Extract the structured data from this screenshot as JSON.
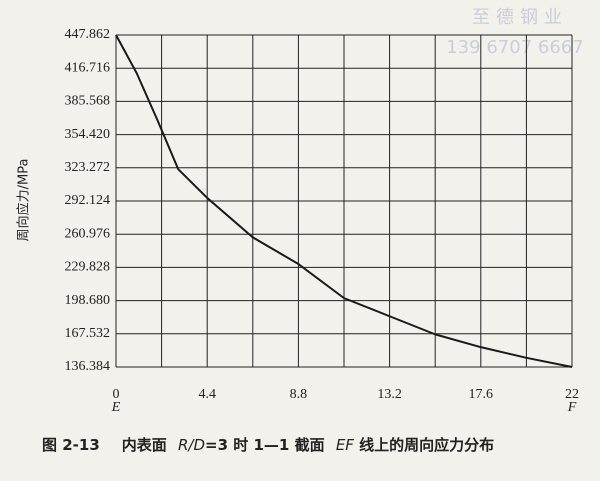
{
  "watermark": [
    "至德钢业",
    "139 6707 6667"
  ],
  "chart_data": {
    "type": "line",
    "y_label": "周向应力/MPa",
    "caption": [
      "图 2-13",
      "内表面 ",
      "R/D",
      "=3 时 1—1 截面 ",
      "EF",
      " 线上的周向应力分布"
    ],
    "x_end_labels": [
      "E",
      "F"
    ],
    "x": [
      0,
      1,
      2,
      3,
      4.4,
      6.6,
      8.8,
      11,
      13.2,
      15.4,
      17.6,
      19.8,
      22
    ],
    "values": [
      447.862,
      412,
      368,
      322,
      295,
      258,
      233,
      201,
      184,
      167,
      155,
      145,
      136.384
    ],
    "color": "#1a1a1a",
    "xlim": [
      0,
      22
    ],
    "xticks": [
      0,
      4.4,
      8.8,
      13.2,
      17.6,
      22
    ],
    "ylim": [
      136.384,
      447.862
    ],
    "yticks": [
      136.384,
      167.532,
      {
        "value": 198.68,
        "label": "198.680"
      },
      229.828,
      260.976,
      292.124,
      323.272,
      {
        "value": 354.42,
        "label": "354.420"
      },
      385.568,
      416.716,
      447.862
    ],
    "grid": true
  }
}
